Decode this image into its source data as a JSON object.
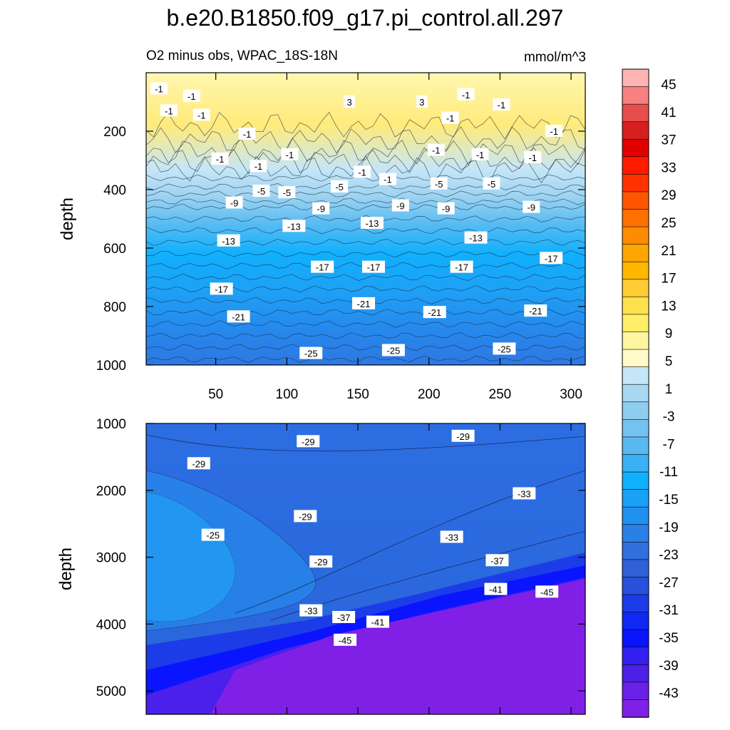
{
  "chart_data": {
    "type": "contour",
    "title": "b.e20.B1850.f09_g17.pi_control.all.297",
    "subtitle_left": "O2 minus obs, WPAC_18S-18N",
    "subtitle_right": "mmol/m^3",
    "ylabel": "depth",
    "x_range": [
      1,
      310
    ],
    "x_ticks": [
      50,
      100,
      150,
      200,
      250,
      300
    ],
    "x_tick_labels": [
      "50",
      "100",
      "150",
      "200",
      "250",
      "300"
    ],
    "colorbar": {
      "labels": [
        "45",
        "41",
        "37",
        "33",
        "29",
        "25",
        "21",
        "17",
        "13",
        "9",
        "5",
        "1",
        "-3",
        "-7",
        "-11",
        "-15",
        "-19",
        "-23",
        "-27",
        "-31",
        "-35",
        "-39",
        "-43"
      ],
      "colors": [
        "#ffb3b3",
        "#f78080",
        "#e64d4d",
        "#d62020",
        "#e00000",
        "#ff1a00",
        "#ff3300",
        "#ff5500",
        "#ff7000",
        "#ff8c00",
        "#ffa500",
        "#ffb700",
        "#ffcc33",
        "#ffe14d",
        "#ffee66",
        "#fff5a0",
        "#fffac8",
        "#c4e6f7",
        "#a8d8f2",
        "#8fcdef",
        "#74c2ef",
        "#5ab8f0",
        "#3ab0f5",
        "#10b0fd",
        "#19a0f7",
        "#2090ef",
        "#2a80e6",
        "#3070de",
        "#3060d6",
        "#2850da",
        "#1c3ce8",
        "#1028f4",
        "#0a14ff",
        "#3420f0",
        "#4c20e6",
        "#6a20e6",
        "#8020e6"
      ]
    },
    "panels": [
      {
        "name": "upper",
        "depth_range": [
          0,
          1000
        ],
        "y_ticks": [
          200,
          400,
          600,
          800,
          1000
        ],
        "y_tick_labels": [
          "200",
          "400",
          "600",
          "800",
          "1000"
        ],
        "contour_labels": [
          {
            "x": 10,
            "depth": 55,
            "text": "-1"
          },
          {
            "x": 33,
            "depth": 80,
            "text": "-1"
          },
          {
            "x": 17,
            "depth": 130,
            "text": "-1"
          },
          {
            "x": 40,
            "depth": 145,
            "text": "-1"
          },
          {
            "x": 72,
            "depth": 210,
            "text": "-1"
          },
          {
            "x": 53,
            "depth": 295,
            "text": "-1"
          },
          {
            "x": 80,
            "depth": 320,
            "text": "-1"
          },
          {
            "x": 102,
            "depth": 280,
            "text": "-1"
          },
          {
            "x": 144,
            "depth": 100,
            "text": "3"
          },
          {
            "x": 195,
            "depth": 100,
            "text": "3"
          },
          {
            "x": 226,
            "depth": 75,
            "text": "-1"
          },
          {
            "x": 251,
            "depth": 110,
            "text": "-1"
          },
          {
            "x": 215,
            "depth": 155,
            "text": "-1"
          },
          {
            "x": 205,
            "depth": 265,
            "text": "-1"
          },
          {
            "x": 236,
            "depth": 280,
            "text": "-1"
          },
          {
            "x": 273,
            "depth": 290,
            "text": "-1"
          },
          {
            "x": 288,
            "depth": 200,
            "text": "-1"
          },
          {
            "x": 153,
            "depth": 340,
            "text": "-1"
          },
          {
            "x": 171,
            "depth": 365,
            "text": "-1"
          },
          {
            "x": 82,
            "depth": 405,
            "text": "-5"
          },
          {
            "x": 100,
            "depth": 410,
            "text": "-5"
          },
          {
            "x": 137,
            "depth": 390,
            "text": "-5"
          },
          {
            "x": 207,
            "depth": 380,
            "text": "-5"
          },
          {
            "x": 244,
            "depth": 380,
            "text": "-5"
          },
          {
            "x": 63,
            "depth": 445,
            "text": "-9"
          },
          {
            "x": 124,
            "depth": 465,
            "text": "-9"
          },
          {
            "x": 180,
            "depth": 455,
            "text": "-9"
          },
          {
            "x": 212,
            "depth": 465,
            "text": "-9"
          },
          {
            "x": 272,
            "depth": 460,
            "text": "-9"
          },
          {
            "x": 105,
            "depth": 525,
            "text": "-13"
          },
          {
            "x": 59,
            "depth": 575,
            "text": "-13"
          },
          {
            "x": 160,
            "depth": 515,
            "text": "-13"
          },
          {
            "x": 233,
            "depth": 565,
            "text": "-13"
          },
          {
            "x": 125,
            "depth": 665,
            "text": "-17"
          },
          {
            "x": 161,
            "depth": 665,
            "text": "-17"
          },
          {
            "x": 223,
            "depth": 665,
            "text": "-17"
          },
          {
            "x": 286,
            "depth": 635,
            "text": "-17"
          },
          {
            "x": 54,
            "depth": 740,
            "text": "-17"
          },
          {
            "x": 66,
            "depth": 835,
            "text": "-21"
          },
          {
            "x": 154,
            "depth": 790,
            "text": "-21"
          },
          {
            "x": 204,
            "depth": 820,
            "text": "-21"
          },
          {
            "x": 275,
            "depth": 815,
            "text": "-21"
          },
          {
            "x": 117,
            "depth": 960,
            "text": "-25"
          },
          {
            "x": 175,
            "depth": 950,
            "text": "-25"
          },
          {
            "x": 253,
            "depth": 945,
            "text": "-25"
          }
        ]
      },
      {
        "name": "lower",
        "depth_range": [
          1000,
          5350
        ],
        "y_ticks": [
          1000,
          2000,
          3000,
          4000,
          5000
        ],
        "y_tick_labels": [
          "1000",
          "2000",
          "3000",
          "4000",
          "5000"
        ],
        "contour_labels": [
          {
            "x": 115,
            "depth": 1270,
            "text": "-29"
          },
          {
            "x": 224,
            "depth": 1190,
            "text": "-29"
          },
          {
            "x": 38,
            "depth": 1600,
            "text": "-29"
          },
          {
            "x": 113,
            "depth": 2390,
            "text": "-29"
          },
          {
            "x": 267,
            "depth": 2050,
            "text": "-33"
          },
          {
            "x": 48,
            "depth": 2670,
            "text": "-25"
          },
          {
            "x": 124,
            "depth": 3070,
            "text": "-29"
          },
          {
            "x": 216,
            "depth": 2700,
            "text": "-33"
          },
          {
            "x": 248,
            "depth": 3050,
            "text": "-37"
          },
          {
            "x": 247,
            "depth": 3480,
            "text": "-41"
          },
          {
            "x": 283,
            "depth": 3520,
            "text": "-45"
          },
          {
            "x": 117,
            "depth": 3800,
            "text": "-33"
          },
          {
            "x": 140,
            "depth": 3900,
            "text": "-37"
          },
          {
            "x": 164,
            "depth": 3970,
            "text": "-41"
          },
          {
            "x": 141,
            "depth": 4240,
            "text": "-45"
          }
        ]
      }
    ]
  }
}
